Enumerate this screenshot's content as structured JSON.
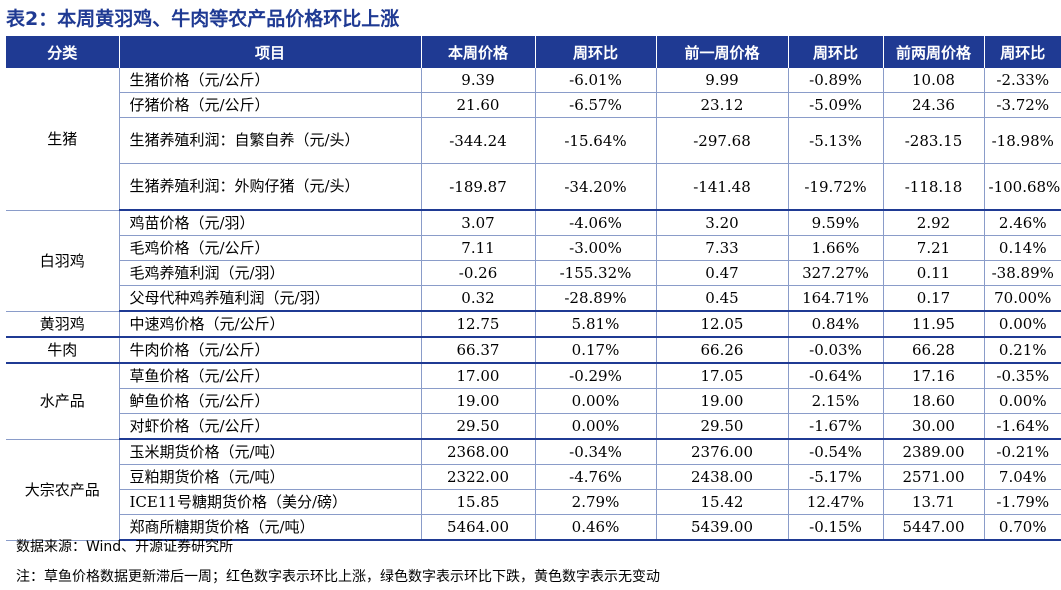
{
  "title": "表2：本周黄羽鸡、牛肉等农产品价格环比上涨",
  "headers": [
    "分类",
    "项目",
    "本周价格",
    "周环比",
    "前一周价格",
    "周环比",
    "前两周价格",
    "周环比"
  ],
  "groups": [
    {
      "category": "生猪",
      "rows": [
        {
          "item": "生猪价格（元/公斤）",
          "cells": [
            [
              "9.39",
              "down"
            ],
            [
              "-6.01%",
              "down"
            ],
            [
              "9.99",
              "down"
            ],
            [
              "-0.89%",
              "down"
            ],
            [
              "10.08",
              "down"
            ],
            [
              "-2.33%",
              "down"
            ]
          ]
        },
        {
          "item": "仔猪价格（元/公斤）",
          "cells": [
            [
              "21.60",
              "down"
            ],
            [
              "-6.57%",
              "down"
            ],
            [
              "23.12",
              "down"
            ],
            [
              "-5.09%",
              "down"
            ],
            [
              "24.36",
              "down"
            ],
            [
              "-3.72%",
              "down"
            ]
          ]
        },
        {
          "item": "生猪养殖利润：自繁自养（元/头）",
          "cells": [
            [
              "-344.24",
              "down"
            ],
            [
              "-15.64%",
              "down"
            ],
            [
              "-297.68",
              "down"
            ],
            [
              "-5.13%",
              "down"
            ],
            [
              "-283.15",
              "down"
            ],
            [
              "-18.98%",
              "down"
            ]
          ],
          "tall": true
        },
        {
          "item": "生猪养殖利润：外购仔猪（元/头）",
          "cells": [
            [
              "-189.87",
              "down"
            ],
            [
              "-34.20%",
              "down"
            ],
            [
              "-141.48",
              "down"
            ],
            [
              "-19.72%",
              "down"
            ],
            [
              "-118.18",
              "down"
            ],
            [
              "-100.68%",
              "down"
            ]
          ],
          "tall": true
        }
      ]
    },
    {
      "category": "白羽鸡",
      "rows": [
        {
          "item": "鸡苗价格（元/羽）",
          "cells": [
            [
              "3.07",
              "down"
            ],
            [
              "-4.06%",
              "down"
            ],
            [
              "3.20",
              "up"
            ],
            [
              "9.59%",
              "up"
            ],
            [
              "2.92",
              "up"
            ],
            [
              "2.46%",
              "up"
            ]
          ]
        },
        {
          "item": "毛鸡价格（元/公斤）",
          "cells": [
            [
              "7.11",
              "down"
            ],
            [
              "-3.00%",
              "down"
            ],
            [
              "7.33",
              "up"
            ],
            [
              "1.66%",
              "up"
            ],
            [
              "7.21",
              "up"
            ],
            [
              "0.14%",
              "up"
            ]
          ]
        },
        {
          "item": "毛鸡养殖利润（元/羽）",
          "cells": [
            [
              "-0.26",
              "down"
            ],
            [
              "-155.32%",
              "down"
            ],
            [
              "0.47",
              "up"
            ],
            [
              "327.27%",
              "up"
            ],
            [
              "0.11",
              "down"
            ],
            [
              "-38.89%",
              "down"
            ]
          ]
        },
        {
          "item": "父母代种鸡养殖利润（元/羽）",
          "cells": [
            [
              "0.32",
              "down"
            ],
            [
              "-28.89%",
              "down"
            ],
            [
              "0.45",
              "up"
            ],
            [
              "164.71%",
              "up"
            ],
            [
              "0.17",
              "up"
            ],
            [
              "70.00%",
              "up"
            ]
          ]
        }
      ]
    },
    {
      "category": "黄羽鸡",
      "rows": [
        {
          "item": "中速鸡价格（元/公斤）",
          "cells": [
            [
              "12.75",
              "up"
            ],
            [
              "5.81%",
              "up"
            ],
            [
              "12.05",
              "up"
            ],
            [
              "0.84%",
              "up"
            ],
            [
              "11.95",
              "flat"
            ],
            [
              "0.00%",
              "flat"
            ]
          ]
        }
      ]
    },
    {
      "category": "牛肉",
      "rows": [
        {
          "item": "牛肉价格（元/公斤）",
          "cells": [
            [
              "66.37",
              "up"
            ],
            [
              "0.17%",
              "up"
            ],
            [
              "66.26",
              "down"
            ],
            [
              "-0.03%",
              "down"
            ],
            [
              "66.28",
              "up"
            ],
            [
              "0.21%",
              "up"
            ]
          ]
        }
      ]
    },
    {
      "category": "水产品",
      "rows": [
        {
          "item": "草鱼价格（元/公斤）",
          "cells": [
            [
              "17.00",
              "down"
            ],
            [
              "-0.29%",
              "down"
            ],
            [
              "17.05",
              "down"
            ],
            [
              "-0.64%",
              "down"
            ],
            [
              "17.16",
              "down"
            ],
            [
              "-0.35%",
              "down"
            ]
          ]
        },
        {
          "item": "鲈鱼价格（元/公斤）",
          "cells": [
            [
              "19.00",
              "flat"
            ],
            [
              "0.00%",
              "flat"
            ],
            [
              "19.00",
              "up"
            ],
            [
              "2.15%",
              "up"
            ],
            [
              "18.60",
              "flat"
            ],
            [
              "0.00%",
              "flat"
            ]
          ]
        },
        {
          "item": "对虾价格（元/公斤）",
          "cells": [
            [
              "29.50",
              "flat"
            ],
            [
              "0.00%",
              "flat"
            ],
            [
              "29.50",
              "down"
            ],
            [
              "-1.67%",
              "down"
            ],
            [
              "30.00",
              "down"
            ],
            [
              "-1.64%",
              "down"
            ]
          ]
        }
      ]
    },
    {
      "category": "大宗农产品",
      "rows": [
        {
          "item": "玉米期货价格（元/吨）",
          "cells": [
            [
              "2368.00",
              "down"
            ],
            [
              "-0.34%",
              "down"
            ],
            [
              "2376.00",
              "down"
            ],
            [
              "-0.54%",
              "down"
            ],
            [
              "2389.00",
              "down"
            ],
            [
              "-0.21%",
              "down"
            ]
          ]
        },
        {
          "item": "豆粕期货价格（元/吨）",
          "cells": [
            [
              "2322.00",
              "down"
            ],
            [
              "-4.76%",
              "down"
            ],
            [
              "2438.00",
              "down"
            ],
            [
              "-5.17%",
              "down"
            ],
            [
              "2571.00",
              "up"
            ],
            [
              "7.04%",
              "up"
            ]
          ]
        },
        {
          "item": "ICE11号糖期货价格（美分/磅）",
          "cells": [
            [
              "15.85",
              "up"
            ],
            [
              "2.79%",
              "up"
            ],
            [
              "15.42",
              "up"
            ],
            [
              "12.47%",
              "up"
            ],
            [
              "13.71",
              "down"
            ],
            [
              "-1.79%",
              "down"
            ]
          ]
        },
        {
          "item": "郑商所糖期货价格（元/吨）",
          "cells": [
            [
              "5464.00",
              "up"
            ],
            [
              "0.46%",
              "up"
            ],
            [
              "5439.00",
              "down"
            ],
            [
              "-0.15%",
              "down"
            ],
            [
              "5447.00",
              "up"
            ],
            [
              "0.70%",
              "up"
            ]
          ]
        }
      ]
    }
  ],
  "source_note": "数据来源：Wind、开源证券研究所",
  "footnote": "注：草鱼价格数据更新滞后一周；红色数字表示环比上涨，绿色数字表示环比下跌，黄色数字表示无变动"
}
